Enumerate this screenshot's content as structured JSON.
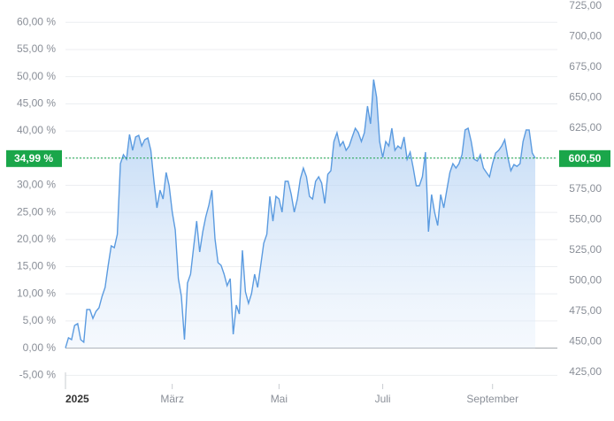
{
  "chart_data": {
    "type": "line",
    "series": [
      {
        "color": "#5b9be0",
        "axis": "y2",
        "values": [
          445,
          453.3,
          451.8,
          463.4,
          464.9,
          451.8,
          449.7,
          476.5,
          476.5,
          469.2,
          475.0,
          477.9,
          487.3,
          494.6,
          512.7,
          528.6,
          527.2,
          538.1,
          596.0,
          603.3,
          599.6,
          619.9,
          606.9,
          617.8,
          619.2,
          610.5,
          615.6,
          617.0,
          606.9,
          581.5,
          559.8,
          574.3,
          567.0,
          588.8,
          577.9,
          556.2,
          541.7,
          501.8,
          487.3,
          451.8,
          498.2,
          505.4,
          527.2,
          548.9,
          523.6,
          540.2,
          552.5,
          562.0,
          574.3,
          534.4,
          514.9,
          512.7,
          505.4,
          496.0,
          501.8,
          456.2,
          480.1,
          472.8,
          525.0,
          491.0,
          481.5,
          489.5,
          505.4,
          494.6,
          512.7,
          530.8,
          538.1,
          569.2,
          548.9,
          569.2,
          567.0,
          556.2,
          581.5,
          581.5,
          570.7,
          556.2,
          567.0,
          583.7,
          592.4,
          585.2,
          569.2,
          567.0,
          581.5,
          585.2,
          580.1,
          563.4,
          587.3,
          590.2,
          614.1,
          621.4,
          610.5,
          614.1,
          606.9,
          610.5,
          617.8,
          625.0,
          621.4,
          614.1,
          621.4,
          643.1,
          628.6,
          664.9,
          650.4,
          614.1,
          601.1,
          614.1,
          610.5,
          625.0,
          606.9,
          610.5,
          608.3,
          617.8,
          599.6,
          605.4,
          592.4,
          577.9,
          577.9,
          585.2,
          605.4,
          540.2,
          570.7,
          556.2,
          545.3,
          570.7,
          559.8,
          574.3,
          588.8,
          596.0,
          592.4,
          596.0,
          603.3,
          623.6,
          625.0,
          614.1,
          599.6,
          598.2,
          603.3,
          592.4,
          588.8,
          585.2,
          596.0,
          604.7,
          606.9,
          610.5,
          615.6,
          601.1,
          590.2,
          595.3,
          593.8,
          596.0,
          614.1,
          623.6,
          623.6,
          604.7,
          600.5
        ]
      }
    ],
    "xticks": [
      {
        "value": 0,
        "label": "2025"
      },
      {
        "value": 35,
        "label": "März"
      },
      {
        "value": 70,
        "label": "Mai"
      },
      {
        "value": 104,
        "label": "Juli"
      },
      {
        "value": 140,
        "label": "September"
      }
    ],
    "ylim": [
      -4.46,
      62.98
    ],
    "yticks": [
      {
        "value": -5,
        "label": "-5,00 %"
      },
      {
        "value": 0,
        "label": "0,00 %"
      },
      {
        "value": 5,
        "label": "5,00 %"
      },
      {
        "value": 10,
        "label": "10,00 %"
      },
      {
        "value": 15,
        "label": "15,00 %"
      },
      {
        "value": 20,
        "label": "20,00 %"
      },
      {
        "value": 25,
        "label": "25,00 %"
      },
      {
        "value": 30,
        "label": "30,00 %"
      },
      {
        "value": 35,
        "label": "35,00 %"
      },
      {
        "value": 40,
        "label": "40,00 %"
      },
      {
        "value": 45,
        "label": "45,00 %"
      },
      {
        "value": 50,
        "label": "50,00 %"
      },
      {
        "value": 55,
        "label": "55,00 %"
      },
      {
        "value": 60,
        "label": "60,00 %"
      }
    ],
    "y2lim": [
      425,
      725
    ],
    "y2ticks": [
      {
        "value": 425,
        "label": "425,00"
      },
      {
        "value": 450,
        "label": "450,00"
      },
      {
        "value": 475,
        "label": "475,00"
      },
      {
        "value": 500,
        "label": "500,00"
      },
      {
        "value": 525,
        "label": "525,00"
      },
      {
        "value": 550,
        "label": "550,00"
      },
      {
        "value": 575,
        "label": "575,00"
      },
      {
        "value": 600,
        "label": "600,00"
      },
      {
        "value": 625,
        "label": "625,00"
      },
      {
        "value": 650,
        "label": "650,00"
      },
      {
        "value": 675,
        "label": "675,00"
      },
      {
        "value": 700,
        "label": "700,00"
      },
      {
        "value": 725,
        "label": "725,00"
      }
    ],
    "last_change": {
      "value": 34.99,
      "label": "34,99 %"
    },
    "last_price": {
      "value": 600.5,
      "label": "600,50"
    },
    "marker_color": "#1aa64a",
    "grid": true
  }
}
